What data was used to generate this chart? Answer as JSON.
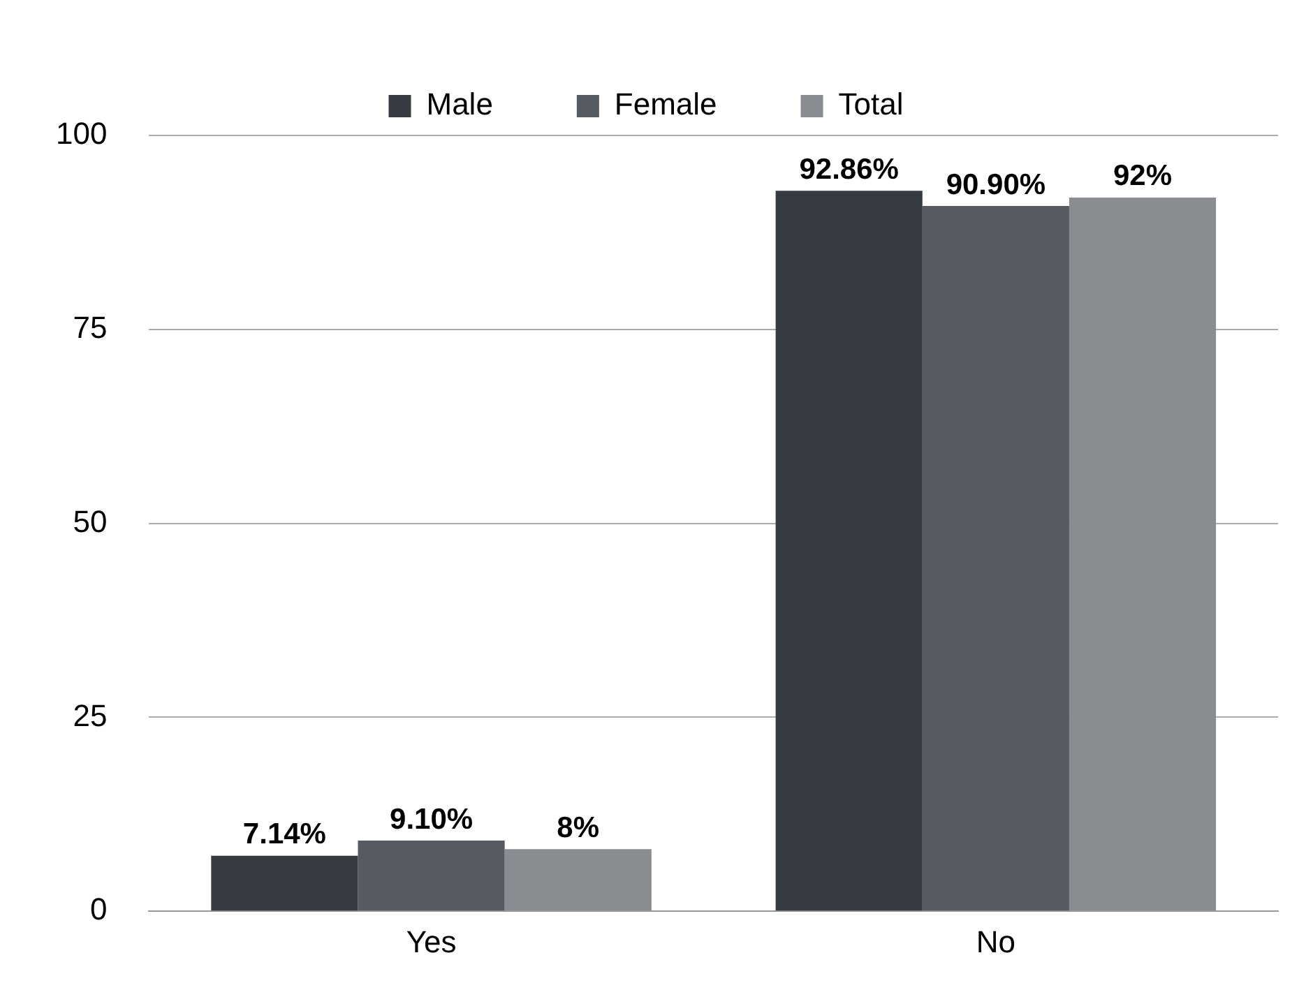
{
  "chart_data": {
    "type": "bar",
    "categories": [
      "Yes",
      "No"
    ],
    "series": [
      {
        "name": "Male",
        "color": "#363a41",
        "values": [
          7.14,
          92.86
        ],
        "value_labels": [
          "7.14%",
          "92.86%"
        ]
      },
      {
        "name": "Female",
        "color": "#565a63",
        "values": [
          9.1,
          90.9
        ],
        "value_labels": [
          "9.10%",
          "90.90%"
        ]
      },
      {
        "name": "Total",
        "color": "#898c90",
        "values": [
          8,
          92
        ],
        "value_labels": [
          "8%",
          "92%"
        ]
      }
    ],
    "ylim": [
      0,
      100
    ],
    "yticks": [
      0,
      25,
      50,
      75,
      100
    ],
    "grid": "y",
    "legend": "top"
  }
}
